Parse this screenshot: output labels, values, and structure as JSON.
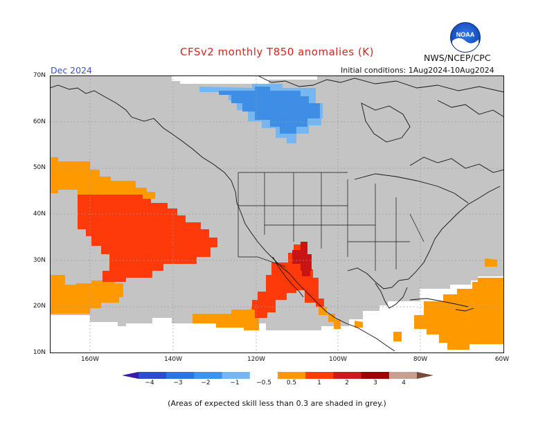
{
  "title": "CFSv2 monthly T850 anomalies (K)",
  "agency": "NWS/NCEP/CPC",
  "logo_text": "NOAA",
  "valid_month": "Dec 2024",
  "initial_conditions": "Initial conditions:  1Aug2024-10Aug2024",
  "footnote": "(Areas of expected skill less than 0.3 are shaded in grey.)",
  "lat_labels": [
    "70N",
    "60N",
    "50N",
    "40N",
    "30N",
    "20N",
    "10N"
  ],
  "lon_labels": [
    "160W",
    "140W",
    "120W",
    "100W",
    "80W",
    "60W"
  ],
  "colorbar": {
    "labels": [
      "−4",
      "−3",
      "−2",
      "−1",
      "−0.5",
      "0.5",
      "1",
      "2",
      "3",
      "4"
    ],
    "colors": [
      "#3a1aa8",
      "#2a4fc8",
      "#2f73dc",
      "#3e93ea",
      "#76b7f2",
      "#ffffff",
      "#ff9900",
      "#ff3a0a",
      "#d01818",
      "#9c0000",
      "#c8a090",
      "#7a4a3a"
    ]
  },
  "colors": {
    "grey_low_skill": "#c4c4c4",
    "anomaly_pos_0_5_1": "#ff9900",
    "anomaly_pos_1_2": "#ff3a0a",
    "anomaly_pos_2_3": "#c81414",
    "anomaly_neg_0_5_1": "#76b7f2",
    "anomaly_neg_1_2": "#3e8ee6"
  }
}
